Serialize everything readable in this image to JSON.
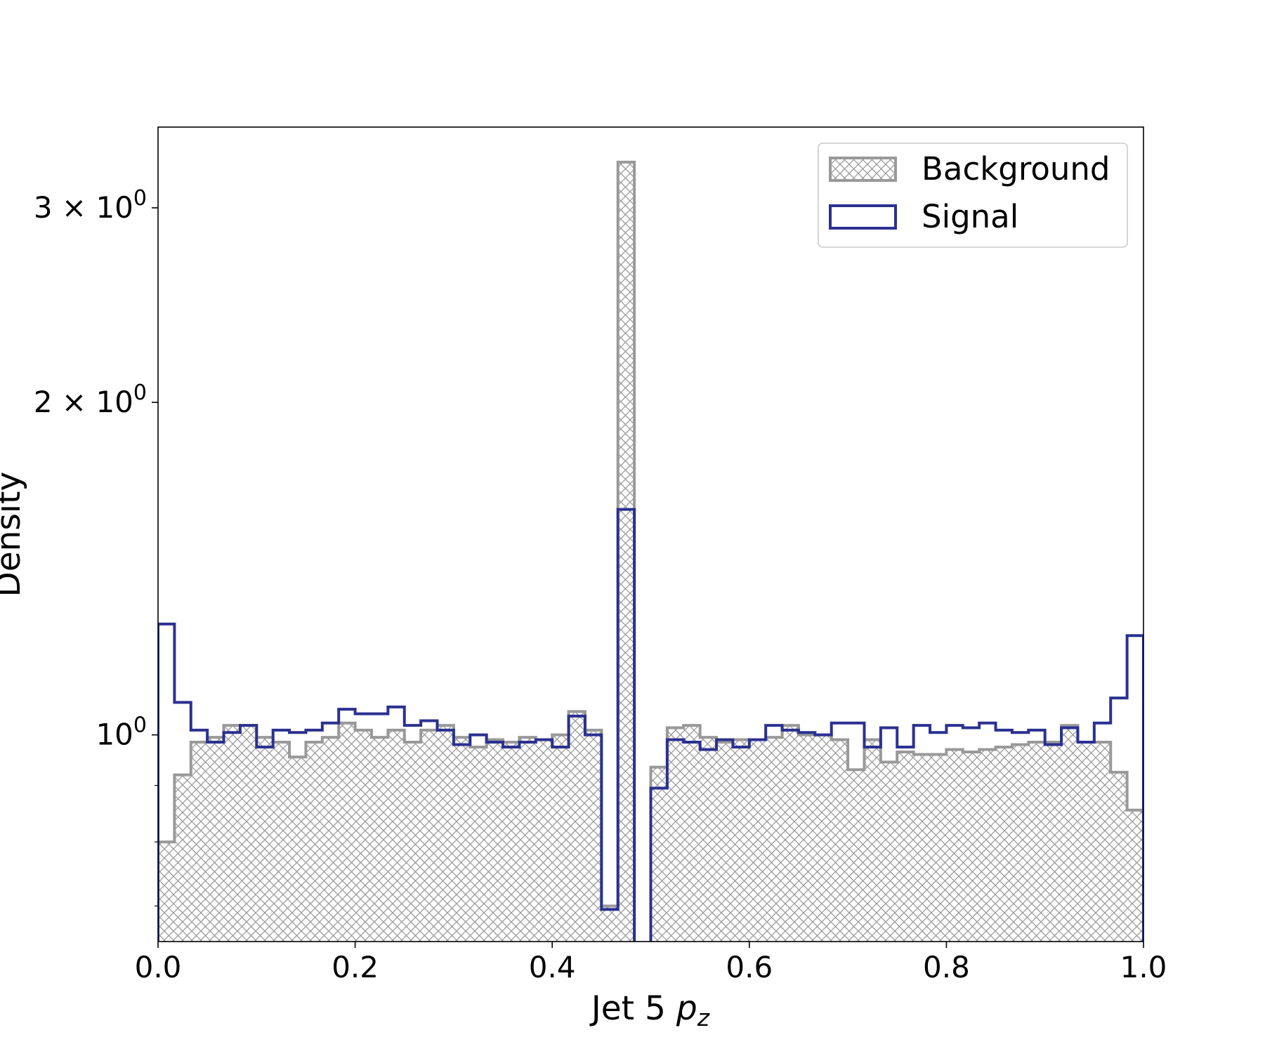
{
  "chart_data": {
    "type": "histogram",
    "title": "",
    "xlabel": "Jet 5 p_z",
    "xlabel_main": "Jet 5 ",
    "xlabel_var": "p",
    "xlabel_sub": "z",
    "ylabel": "Density",
    "y_scale": "log",
    "xlim": [
      0.0,
      1.0
    ],
    "ylim": [
      0.65,
      3.55
    ],
    "x_ticks": [
      {
        "value": 0.0,
        "label": "0.0"
      },
      {
        "value": 0.2,
        "label": "0.2"
      },
      {
        "value": 0.4,
        "label": "0.4"
      },
      {
        "value": 0.6,
        "label": "0.6"
      },
      {
        "value": 0.8,
        "label": "0.8"
      },
      {
        "value": 1.0,
        "label": "1.0"
      }
    ],
    "y_ticks": [
      {
        "value": 1.0,
        "mantissa": "",
        "base": "10",
        "exp": "0"
      },
      {
        "value": 2.0,
        "mantissa": "2 × ",
        "base": "10",
        "exp": "0"
      },
      {
        "value": 3.0,
        "mantissa": "3 × ",
        "base": "10",
        "exp": "0"
      }
    ],
    "y_minor_ticks": [
      0.7,
      0.8,
      0.9
    ],
    "legend_position": "top-right",
    "bin_edges_start": 0.0,
    "bin_width": 0.0166667,
    "series": [
      {
        "name": "Background",
        "style": "hatched",
        "color": "#999999",
        "values": [
          0.8,
          0.92,
          0.985,
          0.995,
          1.02,
          1.02,
          0.995,
          0.985,
          0.955,
          0.985,
          0.995,
          1.025,
          1.01,
          0.995,
          1.01,
          0.985,
          1.01,
          1.02,
          0.995,
          0.975,
          0.99,
          0.985,
          0.995,
          0.99,
          1.0,
          1.05,
          1.01,
          0.7,
          3.3,
          0.0,
          0.935,
          1.015,
          1.02,
          0.995,
          0.985,
          0.99,
          0.99,
          0.995,
          1.02,
          1.0,
          1.0,
          0.99,
          0.93,
          0.99,
          0.945,
          0.965,
          0.96,
          0.96,
          0.97,
          0.965,
          0.97,
          0.975,
          0.98,
          0.985,
          0.985,
          1.02,
          0.985,
          0.985,
          0.925,
          0.855
        ]
      },
      {
        "name": "Signal",
        "style": "step",
        "color": "#2b3190",
        "values": [
          1.26,
          1.07,
          1.01,
          0.985,
          1.005,
          1.02,
          0.975,
          1.01,
          1.005,
          1.01,
          1.025,
          1.055,
          1.045,
          1.045,
          1.06,
          1.02,
          1.03,
          1.01,
          0.98,
          1.0,
          0.985,
          0.975,
          0.985,
          0.99,
          0.975,
          1.04,
          1.0,
          0.695,
          1.6,
          0.0,
          0.895,
          0.99,
          0.985,
          0.97,
          0.99,
          0.975,
          0.99,
          1.02,
          1.01,
          1.005,
          1.0,
          1.025,
          1.025,
          0.975,
          1.015,
          0.975,
          1.02,
          1.005,
          1.02,
          1.015,
          1.025,
          1.01,
          1.005,
          1.01,
          0.98,
          1.015,
          0.985,
          1.025,
          1.08,
          1.23
        ]
      }
    ]
  }
}
